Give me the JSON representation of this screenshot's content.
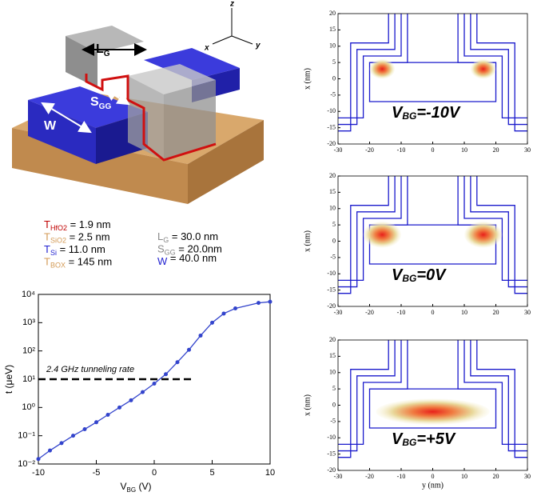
{
  "device": {
    "axes": {
      "z": "z",
      "x": "x",
      "y": "y"
    },
    "labels": {
      "lg": {
        "main": "L",
        "sub": "G"
      },
      "sgg": {
        "main": "S",
        "sub": "GG"
      },
      "w": "W"
    }
  },
  "parameters": {
    "left": [
      {
        "symbol": "T",
        "sub": "HfO2",
        "text": " = 1.9 nm",
        "color": "#c00000"
      },
      {
        "symbol": "T",
        "sub": "SiO2",
        "text": " = 2.5 nm",
        "color": "#d39a55"
      },
      {
        "symbol": "T",
        "sub": "Si",
        "text": " = 11.0 nm",
        "color": "#1f1fd0"
      },
      {
        "symbol": "T",
        "sub": "BOX",
        "text": " = 145 nm",
        "color": "#d39a55"
      }
    ],
    "right": [
      {
        "symbol": "L",
        "sub": "G",
        "text": " = 30.0 nm",
        "color": "#888888"
      },
      {
        "symbol": "S",
        "sub": "GG",
        "text": " = 20.0nm",
        "color": "#888888"
      },
      {
        "symbol": "W",
        "sub": "",
        "text": " = 40.0 nm",
        "color": "#1f1fd0"
      }
    ]
  },
  "chart_data": [
    {
      "type": "line",
      "ylabel": "t (μeV)",
      "xlabel": {
        "main": "V",
        "sub": "BG",
        "text": " (V)"
      },
      "log_y": true,
      "color": "#3344cc",
      "x": [
        -10,
        -9,
        -8,
        -7,
        -6,
        -5,
        -4,
        -3,
        -2,
        -1,
        0,
        1,
        2,
        3,
        4,
        5,
        6,
        7,
        9,
        10
      ],
      "values": [
        0.015,
        0.03,
        0.055,
        0.1,
        0.17,
        0.3,
        0.55,
        1.0,
        1.8,
        3.5,
        7,
        15,
        40,
        110,
        350,
        1000,
        2100,
        3200,
        5000,
        5500
      ],
      "xlim": [
        -10,
        10
      ],
      "xticks": [
        -10,
        -5,
        0,
        5,
        10
      ],
      "ylim": [
        0.01,
        10000
      ],
      "yticks": [
        {
          "value": 0.01,
          "label": "10⁻²"
        },
        {
          "value": 0.1,
          "label": "10⁻¹"
        },
        {
          "value": 1,
          "label": "10⁰"
        },
        {
          "value": 10,
          "label": "10¹"
        },
        {
          "value": 100,
          "label": "10²"
        },
        {
          "value": 1000,
          "label": "10³"
        },
        {
          "value": 10000,
          "label": "10⁴"
        }
      ],
      "reference_line": {
        "y": 10,
        "x": [
          -10,
          3.5
        ],
        "label": "2.4 GHz tunneling rate"
      }
    },
    {
      "type": "contour",
      "annotation": {
        "main": "V",
        "sub": "BG",
        "text": "=-10V"
      },
      "ylabel": "x (nm)",
      "xlim": [
        -30,
        30
      ],
      "xticks": [
        -30,
        -20,
        -10,
        0,
        10,
        20,
        30
      ],
      "ylim": [
        -20,
        20
      ],
      "yticks": [
        -20,
        -15,
        -10,
        -5,
        0,
        5,
        10,
        15,
        20
      ]
    },
    {
      "type": "contour",
      "annotation": {
        "main": "V",
        "sub": "BG",
        "text": "=0V"
      },
      "ylabel": "x (nm)",
      "xlim": [
        -30,
        30
      ],
      "xticks": [
        -30,
        -20,
        -10,
        0,
        10,
        20,
        30
      ],
      "ylim": [
        -20,
        20
      ],
      "yticks": [
        -20,
        -15,
        -10,
        -5,
        0,
        5,
        10,
        15,
        20
      ]
    },
    {
      "type": "contour",
      "annotation": {
        "main": "V",
        "sub": "BG",
        "text": "=+5V"
      },
      "ylabel": "x (nm)",
      "xlabel": "y (nm)",
      "xlim": [
        -30,
        30
      ],
      "xticks": [
        -30,
        -20,
        -10,
        0,
        10,
        20,
        30
      ],
      "ylim": [
        -20,
        20
      ],
      "yticks": [
        -20,
        -15,
        -10,
        -5,
        0,
        5,
        10,
        15,
        20
      ]
    }
  ]
}
